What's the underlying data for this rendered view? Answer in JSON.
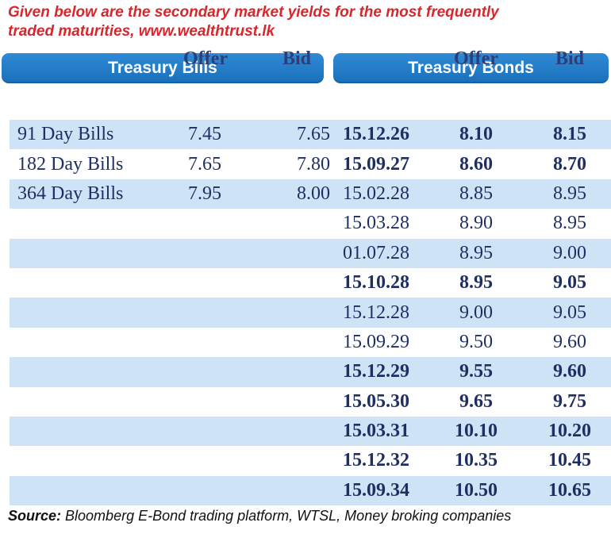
{
  "heading": {
    "line1": "Given below are the secondary market yields for the most frequently",
    "line2": "traded maturities, www.wealthtrust.lk"
  },
  "sections": {
    "bills": "Treasury Bills",
    "bonds": "Treasury Bonds"
  },
  "columns": {
    "bills_offer": "Offer",
    "bills_bid": "Bid",
    "bonds_offer": "Offer",
    "bonds_bid": "Bid"
  },
  "rows": [
    {
      "label": "91 Day Bills",
      "bill_offer": "7.45",
      "bill_bid": "7.65",
      "date": "15.12.26",
      "offer": "8.10",
      "bid": "8.15",
      "bond_bold": true
    },
    {
      "label": "182 Day Bills",
      "bill_offer": "7.65",
      "bill_bid": "7.80",
      "date": "15.09.27",
      "offer": "8.60",
      "bid": "8.70",
      "bond_bold": true
    },
    {
      "label": "364 Day Bills",
      "bill_offer": "7.95",
      "bill_bid": "8.00",
      "date": "15.02.28",
      "offer": "8.85",
      "bid": "8.95",
      "bond_bold": false
    },
    {
      "label": "",
      "bill_offer": "",
      "bill_bid": "",
      "date": "15.03.28",
      "offer": "8.90",
      "bid": "8.95",
      "bond_bold": false
    },
    {
      "label": "",
      "bill_offer": "",
      "bill_bid": "",
      "date": "01.07.28",
      "offer": "8.95",
      "bid": "9.00",
      "bond_bold": false
    },
    {
      "label": "",
      "bill_offer": "",
      "bill_bid": "",
      "date": "15.10.28",
      "offer": "8.95",
      "bid": "9.05",
      "bond_bold": true
    },
    {
      "label": "",
      "bill_offer": "",
      "bill_bid": "",
      "date": "15.12.28",
      "offer": "9.00",
      "bid": "9.05",
      "bond_bold": false
    },
    {
      "label": "",
      "bill_offer": "",
      "bill_bid": "",
      "date": "15.09.29",
      "offer": "9.50",
      "bid": "9.60",
      "bond_bold": false
    },
    {
      "label": "",
      "bill_offer": "",
      "bill_bid": "",
      "date": "15.12.29",
      "offer": "9.55",
      "bid": "9.60",
      "bond_bold": true
    },
    {
      "label": "",
      "bill_offer": "",
      "bill_bid": "",
      "date": "15.05.30",
      "offer": "9.65",
      "bid": "9.75",
      "bond_bold": true
    },
    {
      "label": "",
      "bill_offer": "",
      "bill_bid": "",
      "date": "15.03.31",
      "offer": "10.10",
      "bid": "10.20",
      "bond_bold": true
    },
    {
      "label": "",
      "bill_offer": "",
      "bill_bid": "",
      "date": "15.12.32",
      "offer": "10.35",
      "bid": "10.45",
      "bond_bold": true
    },
    {
      "label": "",
      "bill_offer": "",
      "bill_bid": "",
      "date": "15.09.34",
      "offer": "10.50",
      "bid": "10.65",
      "bond_bold": true
    }
  ],
  "source": {
    "label": "Source:",
    "text": " Bloomberg E-Bond trading platform, WTSL, Money broking companies"
  },
  "colors": {
    "heading": "#d8262c",
    "header_bar": "#1b6fb9",
    "stripe": "#cfe3f6",
    "text": "#1f2f63"
  }
}
